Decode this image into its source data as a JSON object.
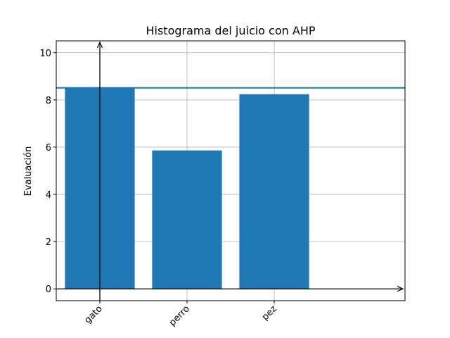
{
  "chart_data": {
    "type": "bar",
    "title": "Histograma del juicio con AHP",
    "y_label": "Evaluación",
    "categories": [
      "gato",
      "perro",
      "pez"
    ],
    "values": [
      8.51,
      5.86,
      8.24
    ],
    "color": "#1f77b4",
    "hline": 8.51,
    "hline_color": "#1f77b4",
    "xlim": [
      -0.5,
      3.5
    ],
    "ylim": [
      -0.5,
      10.5
    ],
    "yticks": [
      0,
      2,
      4,
      6,
      8,
      10
    ],
    "grid": true
  }
}
